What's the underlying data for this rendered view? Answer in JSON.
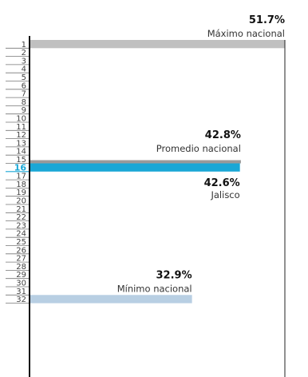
{
  "chart_data": {
    "type": "bar",
    "orientation": "horizontal",
    "y_axis": "rank",
    "ranks": 32,
    "highlight_rank": 16,
    "ranks_list": [
      1,
      2,
      3,
      4,
      5,
      6,
      7,
      8,
      9,
      10,
      11,
      12,
      13,
      14,
      15,
      16,
      17,
      18,
      19,
      20,
      21,
      22,
      23,
      24,
      25,
      26,
      27,
      28,
      29,
      30,
      31,
      32
    ],
    "bars": [
      {
        "rank": 1,
        "value": 51.7,
        "value_label": "51.7%",
        "caption": "Máximo nacional",
        "color": "#c0c0c0"
      },
      {
        "rank": 15,
        "value": 42.8,
        "value_label": "42.8%",
        "caption": "Promedio nacional",
        "color": "#999999"
      },
      {
        "rank": 16,
        "value": 42.6,
        "value_label": "42.6%",
        "caption": "Jalisco",
        "color": "#1aa7d6"
      },
      {
        "rank": 32,
        "value": 32.9,
        "value_label": "32.9%",
        "caption": "Mínimo nacional",
        "color": "#b8cfe3"
      }
    ],
    "xlim": [
      0,
      51.7
    ],
    "colors": {
      "axis": "#111111",
      "rank_line": "#777777",
      "highlight": "#1aa7d6"
    }
  }
}
